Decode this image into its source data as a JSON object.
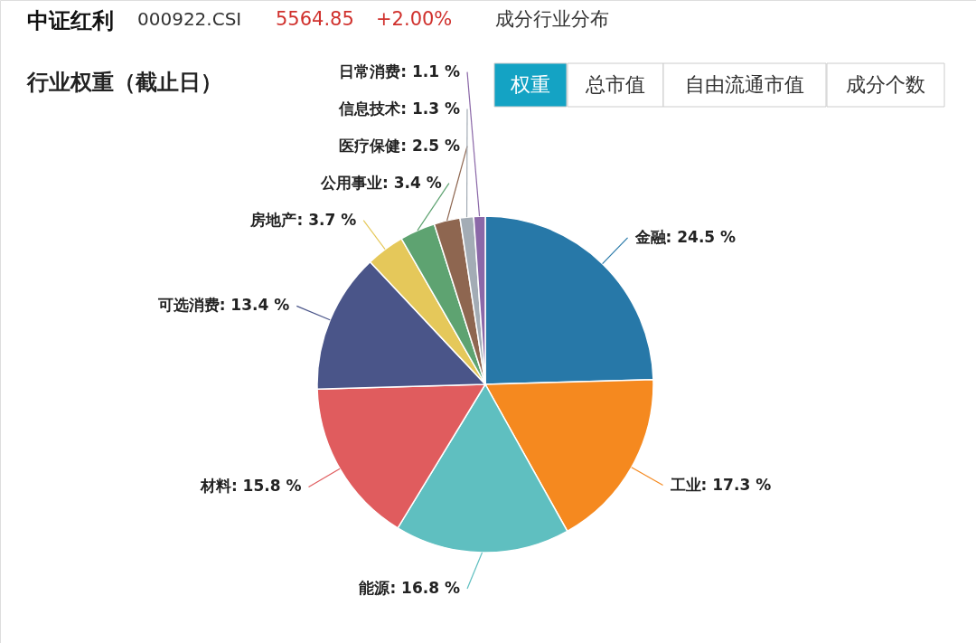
{
  "chart_data": {
    "type": "pie",
    "title": "行业权重（截止日）",
    "categories": [
      "金融",
      "工业",
      "能源",
      "材料",
      "可选消费",
      "房地产",
      "公用事业",
      "医疗保健",
      "信息技术",
      "日常消费"
    ],
    "values": [
      24.5,
      17.3,
      16.8,
      15.8,
      13.4,
      3.7,
      3.4,
      2.5,
      1.3,
      1.1
    ],
    "value_labels": [
      "24.5 %",
      "17.3 %",
      "16.8 %",
      "15.8 %",
      "13.4 %",
      "3.7 %",
      "3.4 %",
      "2.5 %",
      "1.3 %",
      "1.1 %"
    ],
    "colors": [
      "#2778a8",
      "#f5891f",
      "#5fbfc0",
      "#e05c5e",
      "#4a5589",
      "#e5c85a",
      "#5ea371",
      "#8e6650",
      "#a3acb5",
      "#8b68a8"
    ],
    "annotations": [
      "中证红利",
      "000922.CSI",
      "5564.85",
      "+2.00%",
      "成分行业分布",
      "权重",
      "总市值",
      "自由流通市值",
      "成分个数"
    ]
  }
}
